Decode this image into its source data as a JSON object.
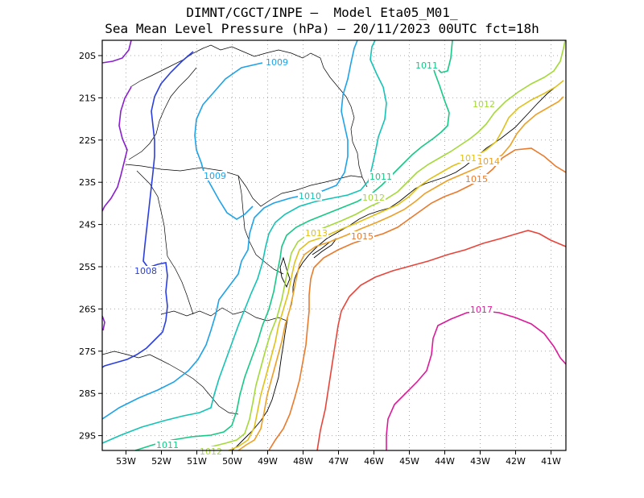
{
  "title_line1": "DIMNT/CGCT/INPE –  Model Eta05_M01_",
  "title_line2": "Sea Mean Level Pressure (hPa) – 20/11/2023 00UTC fct=18h",
  "x_ticks": [
    "53W",
    "52W",
    "51W",
    "50W",
    "49W",
    "48W",
    "47W",
    "46W",
    "45W",
    "44W",
    "43W",
    "42W",
    "41W"
  ],
  "y_ticks": [
    "20S",
    "21S",
    "22S",
    "23S",
    "24S",
    "25S",
    "26S",
    "27S",
    "28S",
    "29S"
  ],
  "colors": {
    "1007": "#8a1fd0",
    "1008": "#2b3fe0",
    "1009": "#1ea2e8",
    "1010": "#14c3b5",
    "1011": "#17c887",
    "1012": "#a5d93a",
    "1013": "#e0c21c",
    "1014": "#eca028",
    "1015": "#ea7a2c",
    "1016": "#e8443a",
    "1017": "#dc1a9a"
  },
  "contour_labels": [
    {
      "text": "1009",
      "level": "1009"
    },
    {
      "text": "1011",
      "level": "1011"
    },
    {
      "text": "1012",
      "level": "1012"
    },
    {
      "text": "1009",
      "level": "1009"
    },
    {
      "text": "1011",
      "level": "1011"
    },
    {
      "text": "1013",
      "level": "1013"
    },
    {
      "text": "1014",
      "level": "1014"
    },
    {
      "text": "1010",
      "level": "1010"
    },
    {
      "text": "1012",
      "level": "1012"
    },
    {
      "text": "1015",
      "level": "1015"
    },
    {
      "text": "1013",
      "level": "1013"
    },
    {
      "text": "1015",
      "level": "1015"
    },
    {
      "text": "1008",
      "level": "1008"
    },
    {
      "text": "1017",
      "level": "1017"
    },
    {
      "text": "1011",
      "level": "1011"
    },
    {
      "text": "1012",
      "level": "1012"
    }
  ]
}
